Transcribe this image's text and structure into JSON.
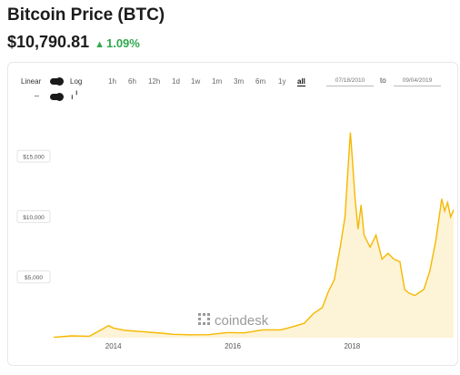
{
  "header": {
    "title": "Bitcoin Price (BTC)",
    "price": "$10,790.81",
    "change": "1.09%",
    "change_color": "#2fa84f"
  },
  "controls": {
    "scale_linear": "Linear",
    "scale_log": "Log",
    "ranges": [
      "1h",
      "6h",
      "12h",
      "1d",
      "1w",
      "1m",
      "3m",
      "6m",
      "1y",
      "all"
    ],
    "active_range": "all",
    "from_date": "07/18/2010",
    "to_label": "to",
    "to_date": "09/04/2019",
    "line_icon": "line-chart-icon",
    "candle_icon": "candlestick-icon"
  },
  "watermark": "coindesk",
  "chart_data": {
    "type": "area",
    "line_color": "#f5b800",
    "fill_color": "#fdf3d6",
    "x_ticks": [
      "2014",
      "2016",
      "2018"
    ],
    "y_ticks": [
      "$5,000",
      "$10,000",
      "$15,000"
    ],
    "y_tick_values": [
      5000,
      10000,
      15000
    ],
    "xlim": [
      2013.0,
      2019.7
    ],
    "ylim": [
      0,
      17500
    ],
    "x": [
      2013.0,
      2013.3,
      2013.6,
      2013.85,
      2013.92,
      2014.0,
      2014.2,
      2014.5,
      2014.8,
      2015.0,
      2015.3,
      2015.6,
      2015.9,
      2016.2,
      2016.5,
      2016.8,
      2017.0,
      2017.2,
      2017.35,
      2017.5,
      2017.6,
      2017.7,
      2017.8,
      2017.88,
      2017.93,
      2017.97,
      2018.0,
      2018.05,
      2018.1,
      2018.15,
      2018.2,
      2018.3,
      2018.4,
      2018.5,
      2018.6,
      2018.7,
      2018.8,
      2018.88,
      2018.95,
      2019.05,
      2019.2,
      2019.3,
      2019.4,
      2019.5,
      2019.55,
      2019.6,
      2019.65,
      2019.7
    ],
    "y": [
      30,
      150,
      120,
      800,
      1000,
      800,
      600,
      500,
      380,
      280,
      240,
      250,
      420,
      400,
      650,
      650,
      900,
      1200,
      2000,
      2500,
      3800,
      4800,
      7500,
      10000,
      14000,
      17000,
      15000,
      11500,
      9000,
      11000,
      8500,
      7500,
      8500,
      6500,
      7000,
      6500,
      6300,
      4000,
      3700,
      3500,
      4000,
      5500,
      8000,
      11500,
      10500,
      11200,
      10000,
      10600
    ]
  }
}
